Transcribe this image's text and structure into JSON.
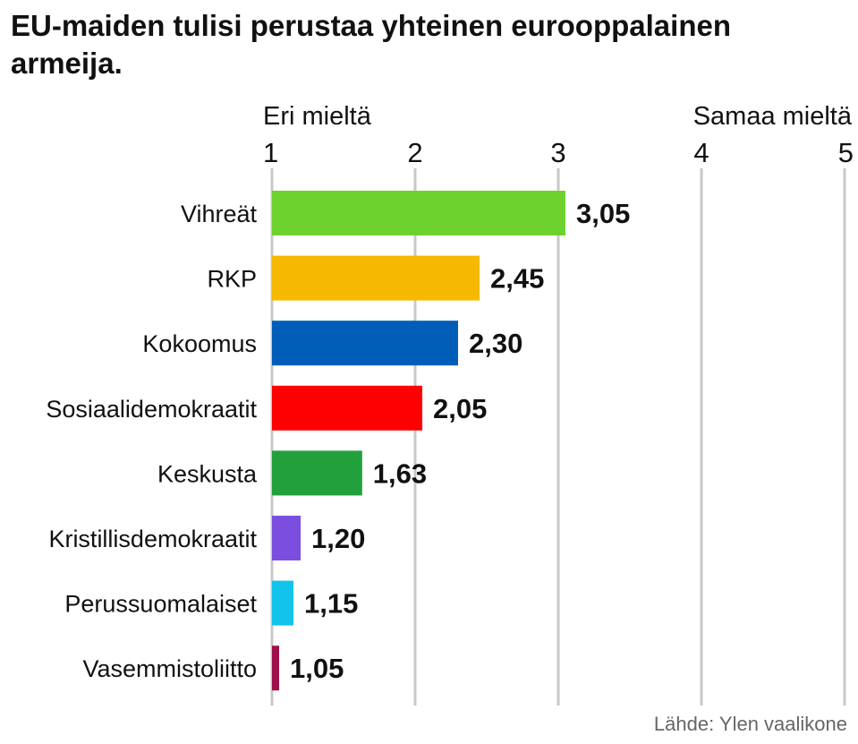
{
  "chart": {
    "title": "EU-maiden tulisi perustaa yhteinen eurooppalainen armeija.",
    "left_label": "Eri mieltä",
    "right_label": "Samaa mieltä",
    "source": "Lähde: Ylen vaalikone"
  },
  "chart_data": {
    "type": "bar",
    "orientation": "horizontal",
    "title": "EU-maiden tulisi perustaa yhteinen eurooppalainen armeija.",
    "categories": [
      "Vihreät",
      "RKP",
      "Kokoomus",
      "Sosiaalidemokraatit",
      "Keskusta",
      "Kristillisdemokraatit",
      "Perussuomalaiset",
      "Vasemmistoliitto"
    ],
    "values": [
      3.05,
      2.45,
      2.3,
      2.05,
      1.63,
      1.2,
      1.15,
      1.05
    ],
    "value_labels": [
      "3,05",
      "2,45",
      "2,30",
      "2,05",
      "1,63",
      "1,20",
      "1,15",
      "1,05"
    ],
    "colors": [
      "#6dd22e",
      "#f7b900",
      "#005eb8",
      "#ff0000",
      "#22a03c",
      "#7b4ee0",
      "#12c3ec",
      "#a0104a"
    ],
    "xlim": [
      1,
      5
    ],
    "xticks": [
      1,
      2,
      3,
      4,
      5
    ],
    "xtick_labels": [
      "1",
      "2",
      "3",
      "4",
      "5"
    ],
    "grid": true,
    "legend": "none"
  }
}
